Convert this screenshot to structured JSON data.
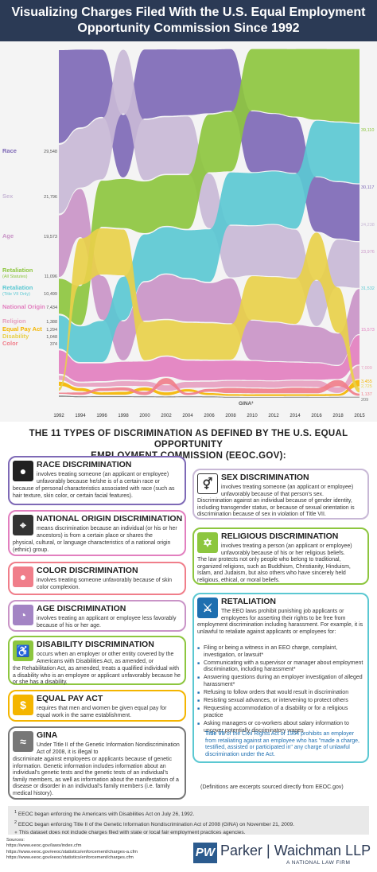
{
  "header": {
    "line1": "Visualizing Charges Filed With the U.S. Equal Employment",
    "line2": "Opportunity Commission Since 1992"
  },
  "chart_data": {
    "type": "area",
    "x": [
      "1992",
      "1994",
      "1996",
      "1998",
      "2000",
      "2002",
      "2004",
      "2006",
      "2008",
      "2010",
      "2012",
      "2014",
      "2016",
      "2018",
      "2015"
    ],
    "series": [
      {
        "name": "Race",
        "start": "29,548",
        "end": "30,117",
        "color": "#7e69b6",
        "values": [
          29548,
          31700,
          26200,
          24300,
          28900,
          29900,
          27700,
          27200,
          33900,
          35900,
          33500,
          31100,
          32300,
          30800,
          30117
        ]
      },
      {
        "name": "Sex",
        "start": "21,796",
        "end": "24,238",
        "color": "#c8b8d6",
        "values": [
          21796,
          23900,
          23800,
          24800,
          25200,
          25500,
          24200,
          23200,
          28400,
          29000,
          30400,
          27000,
          26900,
          25600,
          24238
        ]
      },
      {
        "name": "Age",
        "start": "19,573",
        "end": "23,976",
        "color": "#c994c7",
        "values": [
          19573,
          19600,
          17000,
          15100,
          16000,
          19900,
          17800,
          16500,
          24600,
          23300,
          22900,
          20600,
          20900,
          17100,
          23976
        ]
      },
      {
        "name": "Retaliation",
        "sub": "(All Statutes)",
        "start": "11,096",
        "end": "39,110",
        "color": "#8dc63f",
        "values": [
          11096,
          15900,
          18000,
          19100,
          21600,
          22800,
          22700,
          24600,
          32700,
          36300,
          38000,
          37900,
          42000,
          39500,
          39110
        ]
      },
      {
        "name": "Retaliation",
        "sub": "(Title VII Only)",
        "start": "10,499",
        "end": "31,532",
        "color": "#5bc8d2",
        "values": [
          10499,
          14500,
          16000,
          16800,
          19500,
          20800,
          20200,
          22400,
          28700,
          30900,
          31200,
          30800,
          33000,
          32000,
          31532
        ]
      },
      {
        "name": "National Origin",
        "start": "7,434",
        "end": "15,573",
        "color": "#e27fbf",
        "values": [
          7434,
          7400,
          6900,
          7000,
          7800,
          9000,
          8400,
          8300,
          10600,
          11300,
          10900,
          9600,
          9800,
          7100,
          15573
        ]
      },
      {
        "name": "Religion",
        "start": "1,388",
        "end": "7,009",
        "color": "#e6a0c0",
        "values": [
          1388,
          1500,
          1600,
          1800,
          1900,
          2600,
          2500,
          2500,
          3300,
          3800,
          3800,
          3400,
          3800,
          3100,
          7009
        ]
      },
      {
        "name": "Equal Pay Act",
        "start": "1,294",
        "end": "3,455",
        "color": "#f4b500",
        "values": [
          1294,
          1200,
          900,
          1100,
          1300,
          1300,
          1000,
          860,
          950,
          1040,
          1080,
          940,
          1100,
          1000,
          3455
        ]
      },
      {
        "name": "Disability",
        "start": "1,048",
        "end": "2,725",
        "color": "#e8d04a",
        "values": [
          1048,
          18800,
          18000,
          17800,
          16000,
          15900,
          15400,
          15500,
          19400,
          25700,
          26400,
          25400,
          28000,
          24600,
          2725
        ]
      },
      {
        "name": "Color",
        "start": "374",
        "end": "1,137",
        "color": "#f07e8a",
        "values": [
          374,
          1000,
          1100,
          1200,
          1300,
          2700,
          900,
          1200,
          2800,
          2900,
          2700,
          3100,
          3100,
          3400,
          1137
        ]
      },
      {
        "name": "GINA",
        "start": "",
        "end": "209",
        "color": "#777777",
        "values": [
          0,
          0,
          0,
          0,
          0,
          0,
          0,
          0,
          0,
          200,
          280,
          330,
          240,
          220,
          209
        ]
      }
    ]
  },
  "section_title": {
    "line1": "THE 11 TYPES OF DISCRIMINATION AS DEFINED BY THE U.S. EQUAL OPPORTUNITY",
    "line2": "EMPLOYMENT COMMISSION (EEOC.GOV):"
  },
  "cards": {
    "race": {
      "title": "RACE DISCRIMINATION",
      "lead": "involves treating someone (an applicant or employee) unfavorably because he/she is of a certain race or",
      "rest": "because of personal characteristics associated with race (such as hair texture, skin color, or certain facial features)."
    },
    "sex": {
      "title": "SEX DISCRIMINATION",
      "lead": "involves treating someone (an applicant or employee) unfavorably because of that person's sex.",
      "rest": "Discrimination against an individual because of gender identity, including transgender status, or because of sexual orientation is discrimination because of sex in violation of Title VII."
    },
    "nat": {
      "title": "NATIONAL ORIGIN DISCRIMINATION",
      "lead": "means discrimination because an individual (or his or her ancestors) is from a certain place or shares the",
      "rest": "physical, cultural, or language characteristics of a national origin (ethnic) group."
    },
    "rel": {
      "title": "RELIGIOUS DISCRIMINATION",
      "lead": "involves treating a person (an applicant or employee) unfavorably because of his or her religious beliefs.",
      "rest": "The law protects not only people who belong to traditional, organized religions, such as Buddhism, Christianity, Hinduism, Islam, and Judaism, but also others who have sincerely held religious, ethical, or moral beliefs."
    },
    "color": {
      "title": "COLOR DISCRIMINATION",
      "lead": "involves treating someone unfavorably because of skin color complexion."
    },
    "age": {
      "title": "AGE DISCRIMINATION",
      "lead": "involves treating an applicant or employee less favorably because of his or her age."
    },
    "ret": {
      "title": "RETALIATION",
      "lead": "The EEO laws prohibit punishing job applicants or employees for asserting their rights to be free from",
      "rest": "employment discrimination including harassment. For example, it is unlawful to retaliate against applicants or employees for:",
      "items": [
        "Filing or being a witness in an EEO charge, complaint, investigation, or lawsuit*",
        "Communicating with a supervisor or manager about employment discrimination, including harassment*",
        "Answering questions during an employer investigation of alleged harassment*",
        "Refusing to follow orders that would result in discrimination",
        "Resisting sexual advances, or intervening to protect others",
        "Requesting accommodation of a disability or for a religious practice",
        "Asking managers or co-workers about salary information to uncover potentially discriminatory wages"
      ],
      "tv_bold": "Title VII",
      "tv": " of the Civil Rights Act of 1964 prohibits an employer from retaliating against an employee who has \"made a charge, testified, assisted or participated in\" any charge of unlawful discrimination under the Act."
    },
    "dis": {
      "title": "DISABILITY DISCRIMINATION",
      "lead": "occurs when an employer or other entity covered by the Americans with Disabilities Act, as amended, or",
      "rest": "the Rehabilitation Act, as amended, treats a qualified individual with a disability who is an employee or applicant unfavorably because he or she has a disability."
    },
    "pay": {
      "title": "EQUAL PAY ACT",
      "lead": "requires that men and women be given equal pay for equal work in the same establishment."
    },
    "gina": {
      "title": "GINA",
      "lead": "Under Title II of the Genetic Information Nondiscrimination Act of 2008, it is illegal to",
      "rest": "discriminate against employees or applicants because of genetic information. Genetic information includes information about an individual's genetic tests and the genetic tests of an individual's family members, as well as information about the manifestation of a disease or disorder in an individual's family members (i.e. family medical history)."
    }
  },
  "definitions_note": "(Definitions are excerpts sourced directly from EEOC.gov)",
  "footnotes": [
    "EEOC began enforcing the Americans with Disabilities Act on July 26, 1992.",
    "EEOC began enforcing Title II of the Genetic Information Nondiscrimination Act of 2008 (GINA) on November 21, 2009.",
    "This dataset does not include charges filed with state or local fair employment practices agencies."
  ],
  "sources": {
    "label": "Sources:",
    "links": [
      "https://www.eeoc.gov/laws/index.cfm",
      "https://www.eeoc.gov/eeoc/statistics/enforcement/charges-a.cfm",
      "https://www.eeoc.gov/eeoc/statistics/enforcement/charges.cfm"
    ]
  },
  "logo": {
    "mark": "PW",
    "name": "Parker | Waichman LLP",
    "tagline": "A NATIONAL LAW FIRM",
    "color": "#2b3a55"
  }
}
